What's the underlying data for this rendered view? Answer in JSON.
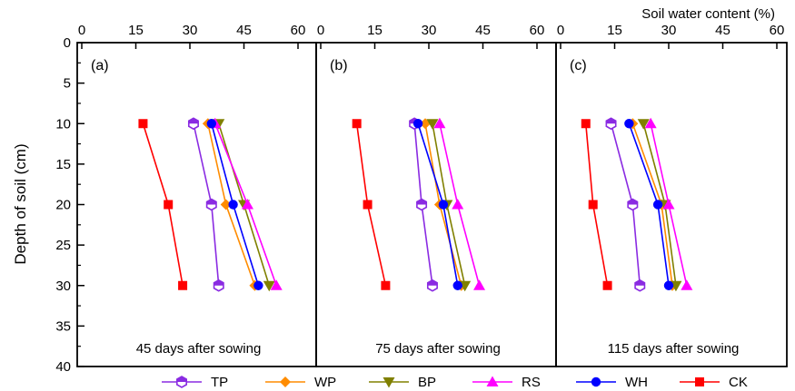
{
  "chart_data": {
    "type": "line",
    "xlabel": "Soil water content (%)",
    "ylabel": "Depth of soil (cm)",
    "x_ticks": [
      0,
      15,
      30,
      45,
      60
    ],
    "y_ticks": [
      0,
      5,
      10,
      15,
      20,
      25,
      30,
      35,
      40
    ],
    "xlim": [
      0,
      60
    ],
    "ylim": [
      0,
      40
    ],
    "y_inverted": true,
    "x_axis_position": "top",
    "grid": false,
    "legend_position": "bottom",
    "depths": [
      10,
      20,
      30
    ],
    "series_styles": [
      {
        "name": "TP",
        "color": "#8a2be2",
        "marker": "hexagon-half"
      },
      {
        "name": "WP",
        "color": "#ff8c00",
        "marker": "diamond"
      },
      {
        "name": "BP",
        "color": "#808000",
        "marker": "triangle-down"
      },
      {
        "name": "RS",
        "color": "#ff00ff",
        "marker": "triangle-up"
      },
      {
        "name": "WH",
        "color": "#0000ff",
        "marker": "circle"
      },
      {
        "name": "CK",
        "color": "#ff0000",
        "marker": "square"
      }
    ],
    "panels": [
      {
        "label": "(a)",
        "caption": "45 days after sowing",
        "values": {
          "TP": [
            31,
            36,
            38
          ],
          "WP": [
            35,
            40,
            48
          ],
          "BP": [
            38,
            45,
            52
          ],
          "RS": [
            37,
            46,
            54
          ],
          "WH": [
            36,
            42,
            49
          ],
          "CK": [
            17,
            24,
            28
          ]
        }
      },
      {
        "label": "(b)",
        "caption": "75 days after sowing",
        "values": {
          "TP": [
            26,
            28,
            31
          ],
          "WP": [
            29,
            33,
            39
          ],
          "BP": [
            31,
            35,
            40
          ],
          "RS": [
            33,
            38,
            44
          ],
          "WH": [
            27,
            34,
            38
          ],
          "CK": [
            10,
            13,
            18
          ]
        }
      },
      {
        "label": "(c)",
        "caption": "115 days after sowing",
        "values": {
          "TP": [
            14,
            20,
            22
          ],
          "WP": [
            20,
            28,
            31
          ],
          "BP": [
            23,
            29,
            32
          ],
          "RS": [
            25,
            30,
            35
          ],
          "WH": [
            19,
            27,
            30
          ],
          "CK": [
            7,
            9,
            13
          ]
        }
      }
    ]
  }
}
